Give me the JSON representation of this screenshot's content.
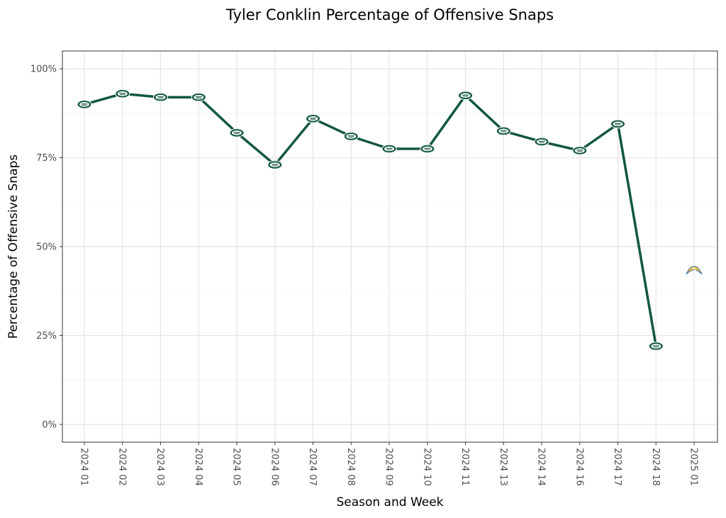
{
  "chart_data": {
    "type": "line",
    "title": "Tyler Conklin Percentage of Offensive Snaps",
    "xlabel": "Season and Week",
    "ylabel": "Percentage of Offensive Snaps",
    "categories": [
      "2024 01",
      "2024 02",
      "2024 03",
      "2024 04",
      "2024 05",
      "2024 06",
      "2024 07",
      "2024 08",
      "2024 09",
      "2024 10",
      "2024 11",
      "2024 13",
      "2024 14",
      "2024 16",
      "2024 17",
      "2024 18",
      "2025 01"
    ],
    "y_ticks": [
      0,
      25,
      50,
      75,
      100
    ],
    "y_tick_labels": [
      "0%",
      "25%",
      "50%",
      "75%",
      "100%"
    ],
    "ylim": [
      -5,
      105
    ],
    "grid": true,
    "series": [
      {
        "team_icon": "jets-logo-icon",
        "color": "#125740",
        "values": [
          90,
          93,
          92,
          92,
          82,
          73,
          86,
          81,
          77.5,
          77.5,
          92.5,
          82.5,
          79.5,
          77,
          84.5,
          22,
          null
        ]
      },
      {
        "team_icon": "chargers-logo-icon",
        "color": "#f2c14e",
        "values": [
          null,
          null,
          null,
          null,
          null,
          null,
          null,
          null,
          null,
          null,
          null,
          null,
          null,
          null,
          null,
          null,
          43
        ]
      }
    ]
  }
}
